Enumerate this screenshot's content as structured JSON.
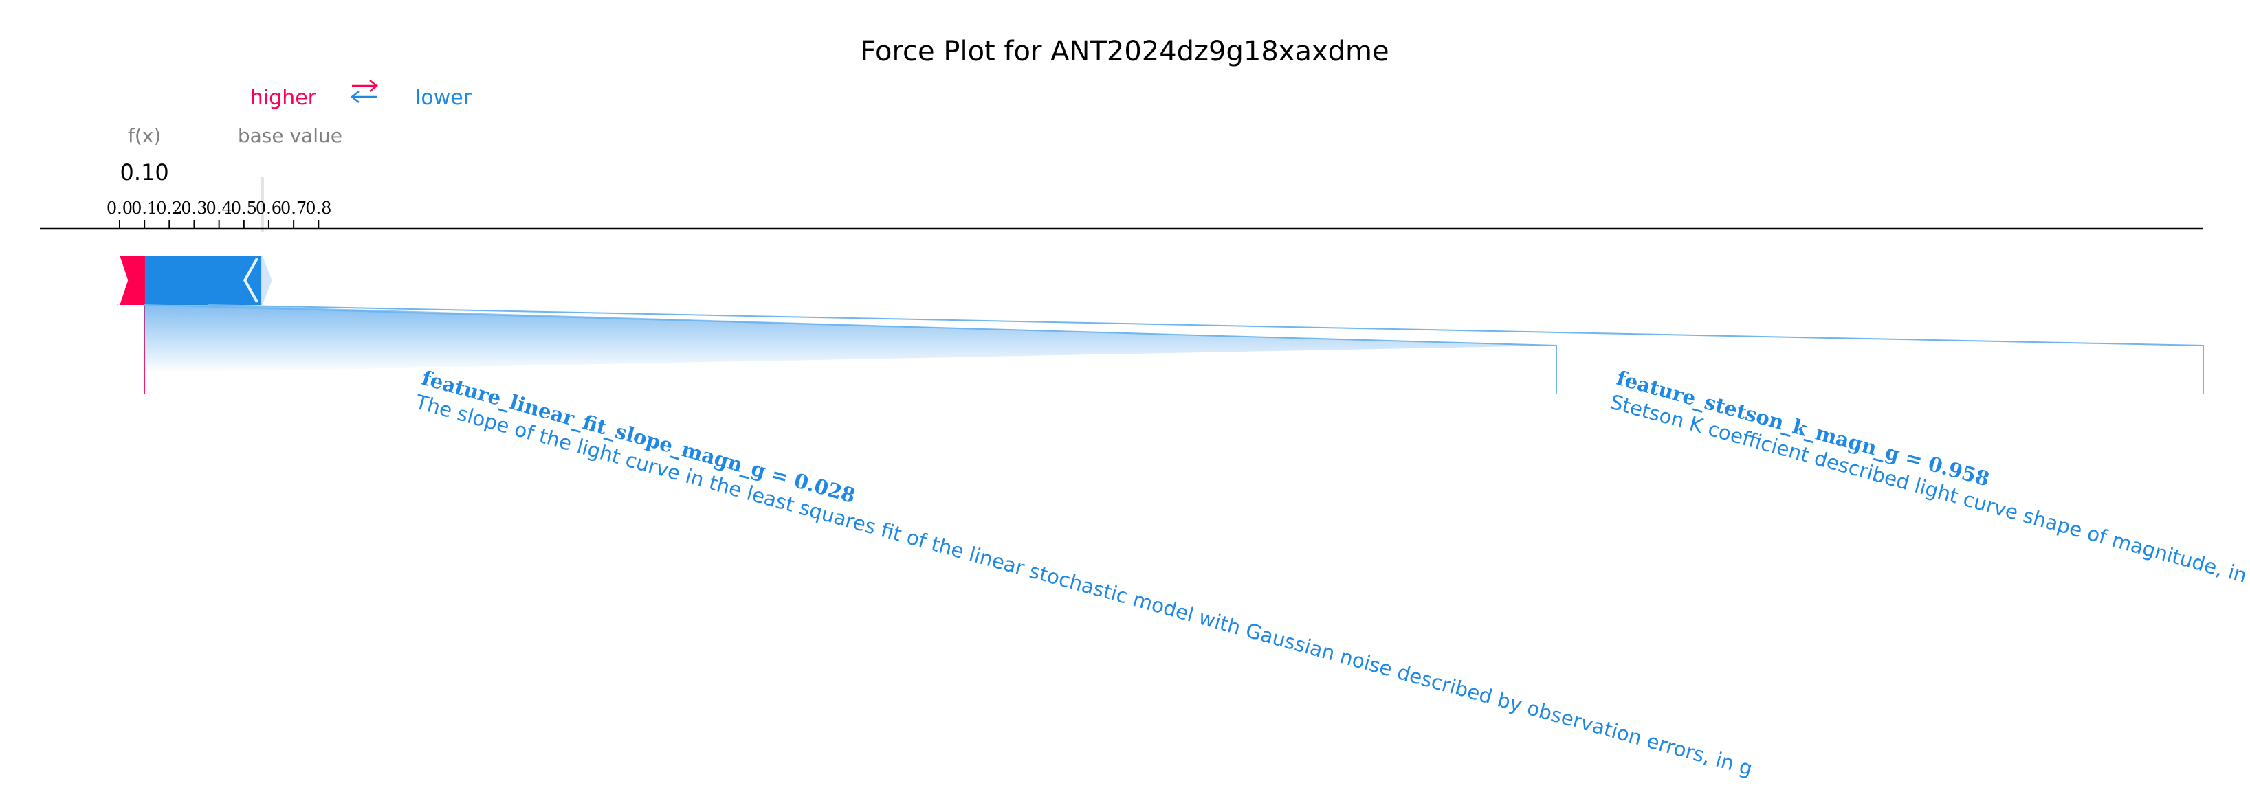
{
  "chart_data": {
    "type": "force",
    "title": "Force Plot for ANT2024dz9g18xaxdme",
    "legend": {
      "higher": "higher",
      "lower": "lower",
      "arrows": "⇄"
    },
    "fx_label": "f(x)",
    "fx_value_label": "0.10",
    "fx_value": 0.1,
    "base_value_label": "base value",
    "base_value": 0.575,
    "xlim": [
      -0.03,
      0.84
    ],
    "ticks": [
      0.0,
      0.1,
      0.2,
      0.3,
      0.4,
      0.5,
      0.6,
      0.7,
      0.8
    ],
    "tick_labels": [
      "0.0",
      "0.1",
      "0.2",
      "0.3",
      "0.4",
      "0.5",
      "0.6",
      "0.7",
      "0.8"
    ],
    "positive_extent": [
      0.062,
      0.1
    ],
    "negative_extent": [
      0.1,
      0.613
    ],
    "annotations": [
      {
        "feature": "feature_linear_fit_slope_magn_g",
        "value_text": "= 0.028",
        "description": "The slope of the light curve in the least squares fit of the linear stochastic model with Gaussian noise described by observation errors, in g",
        "segment": [
          0.1,
          0.357
        ]
      },
      {
        "feature": "feature_stetson_k_magn_g",
        "value_text": "= 0.958",
        "description": "Stetson K coefficient described light curve shape of magnitude, in g",
        "segment": [
          0.357,
          0.613
        ]
      }
    ],
    "colors": {
      "positive": "#ff0051",
      "positive_light": "#ffc3d5",
      "negative": "#1e88e5",
      "negative_light": "#d1e6fa"
    }
  }
}
